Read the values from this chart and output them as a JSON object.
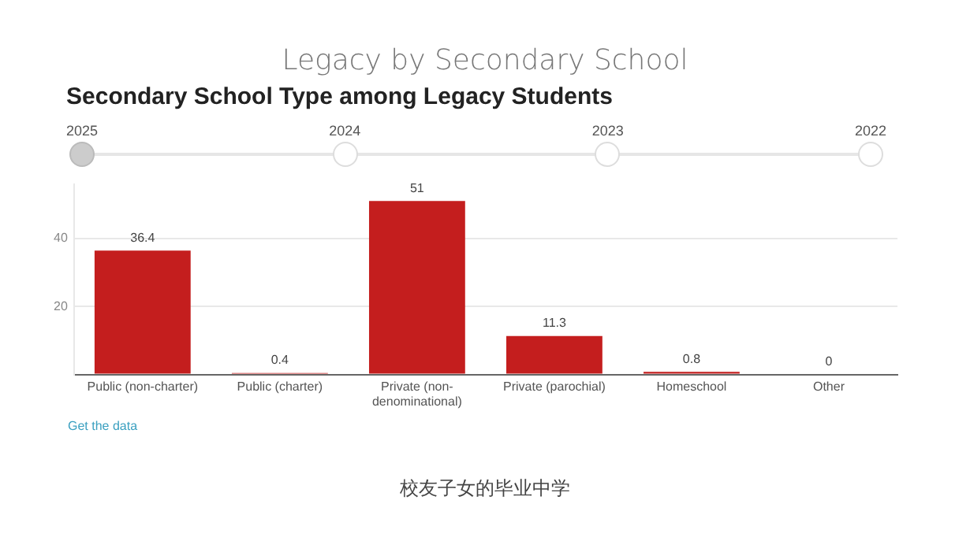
{
  "chart_data": {
    "type": "bar",
    "title": "Legacy by Secondary School",
    "subtitle": "Secondary School Type among Legacy Students",
    "categories": [
      "Public (non-charter)",
      "Public (charter)",
      "Private (non-denominational)",
      "Private (parochial)",
      "Homeschool",
      "Other"
    ],
    "values": [
      36.4,
      0.4,
      51,
      11.3,
      0.8,
      0
    ],
    "color": "#c41e1e",
    "ylim": [
      0,
      56
    ],
    "yticks": [
      {
        "value": 0,
        "label": null
      },
      20,
      40
    ],
    "grid": "y",
    "legend": false,
    "data_labels": true,
    "annotations": [
      "2025",
      "2024",
      "2023",
      "2022",
      "Get the data",
      "校友子女的毕业中学"
    ]
  }
}
